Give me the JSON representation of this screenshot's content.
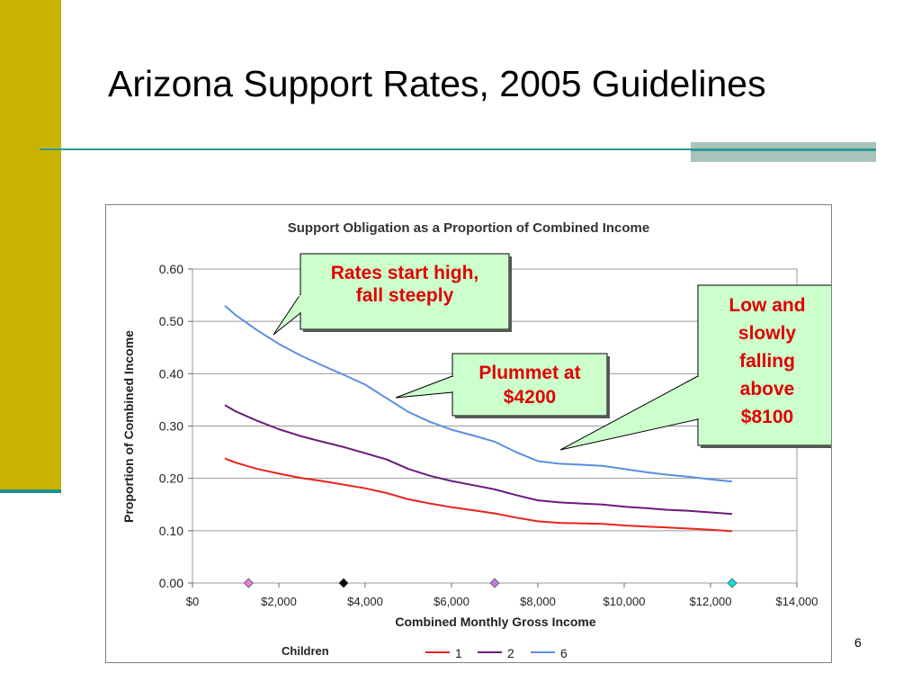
{
  "slide": {
    "title": "Arizona Support Rates, 2005 Guidelines",
    "number": "6"
  },
  "colors": {
    "side_bar": "#c8b400",
    "accent_line": "#2e9a94",
    "callout_fill": "#ccffcc",
    "callout_text": "#e00000"
  },
  "chart_data": {
    "type": "line",
    "title": "Support Obligation as a Proportion of Combined Income",
    "xlabel": "Combined Monthly Gross Income",
    "ylabel": "Proportion of Combined Income",
    "xlim": [
      0,
      14000
    ],
    "ylim": [
      0,
      0.6
    ],
    "x_ticks": [
      0,
      2000,
      4000,
      6000,
      8000,
      10000,
      12000,
      14000
    ],
    "x_tick_labels": [
      "$0",
      "$2,000",
      "$4,000",
      "$6,000",
      "$8,000",
      "$10,000",
      "$12,000",
      "$14,000"
    ],
    "y_ticks": [
      0,
      0.1,
      0.2,
      0.3,
      0.4,
      0.5,
      0.6
    ],
    "y_tick_labels": [
      "0.00",
      "0.10",
      "0.20",
      "0.30",
      "0.40",
      "0.50",
      "0.60"
    ],
    "grid": "horizontal",
    "legend": {
      "title": "Children",
      "placement": "bottom"
    },
    "series": [
      {
        "name": "1",
        "color": "#e8231a",
        "x": [
          750,
          1000,
          1500,
          2000,
          2500,
          3000,
          3500,
          4000,
          4500,
          5000,
          5500,
          6000,
          6500,
          7000,
          7500,
          8000,
          8500,
          9000,
          9500,
          10000,
          10500,
          11000,
          11500,
          12000,
          12500
        ],
        "y": [
          0.238,
          0.23,
          0.218,
          0.209,
          0.201,
          0.195,
          0.188,
          0.181,
          0.172,
          0.16,
          0.152,
          0.145,
          0.139,
          0.133,
          0.125,
          0.118,
          0.115,
          0.114,
          0.113,
          0.11,
          0.108,
          0.106,
          0.104,
          0.102,
          0.099
        ]
      },
      {
        "name": "2",
        "color": "#6a1b7a",
        "x": [
          750,
          1000,
          1500,
          2000,
          2500,
          3000,
          3500,
          4000,
          4500,
          5000,
          5500,
          6000,
          6500,
          7000,
          7500,
          8000,
          8500,
          9000,
          9500,
          10000,
          10500,
          11000,
          11500,
          12000,
          12500
        ],
        "y": [
          0.34,
          0.328,
          0.31,
          0.294,
          0.281,
          0.27,
          0.26,
          0.248,
          0.236,
          0.218,
          0.205,
          0.195,
          0.187,
          0.179,
          0.168,
          0.158,
          0.154,
          0.152,
          0.15,
          0.146,
          0.143,
          0.14,
          0.138,
          0.135,
          0.132
        ]
      },
      {
        "name": "6",
        "color": "#5b8fde",
        "x": [
          750,
          1000,
          1500,
          2000,
          2500,
          3000,
          3500,
          4000,
          4500,
          5000,
          5500,
          6000,
          6500,
          7000,
          7500,
          8000,
          8500,
          9000,
          9500,
          10000,
          10500,
          11000,
          11500,
          12000,
          12500
        ],
        "y": [
          0.53,
          0.512,
          0.483,
          0.457,
          0.435,
          0.416,
          0.398,
          0.379,
          0.353,
          0.327,
          0.308,
          0.293,
          0.282,
          0.27,
          0.25,
          0.233,
          0.228,
          0.226,
          0.224,
          0.218,
          0.212,
          0.207,
          0.203,
          0.198,
          0.194
        ]
      }
    ],
    "markers": [
      {
        "x": 1300,
        "y": 0,
        "color": "#e87ad0"
      },
      {
        "x": 3500,
        "y": 0,
        "color": "#000000"
      },
      {
        "x": 7000,
        "y": 0,
        "color": "#c47ae0"
      },
      {
        "x": 12500,
        "y": 0,
        "color": "#00e5e5"
      }
    ],
    "annotations": [
      {
        "lines": [
          "Rates start high,",
          "fall steeply"
        ]
      },
      {
        "lines": [
          "Plummet at",
          "$4200"
        ]
      },
      {
        "lines": [
          "Low and",
          "slowly",
          "falling",
          "above",
          "$8100"
        ]
      }
    ]
  }
}
